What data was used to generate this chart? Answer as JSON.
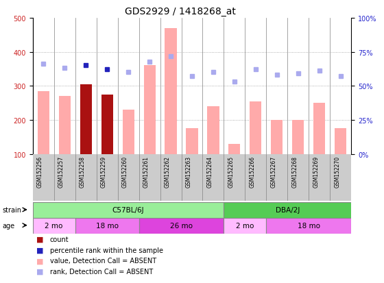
{
  "title": "GDS2929 / 1418268_at",
  "samples": [
    "GSM152256",
    "GSM152257",
    "GSM152258",
    "GSM152259",
    "GSM152260",
    "GSM152261",
    "GSM152262",
    "GSM152263",
    "GSM152264",
    "GSM152265",
    "GSM152266",
    "GSM152267",
    "GSM152268",
    "GSM152269",
    "GSM152270"
  ],
  "bar_values": [
    285,
    270,
    305,
    275,
    230,
    360,
    470,
    175,
    240,
    130,
    255,
    200,
    200,
    250,
    175
  ],
  "bar_colors": [
    "#ffaaaa",
    "#ffaaaa",
    "#aa1111",
    "#aa1111",
    "#ffaaaa",
    "#ffaaaa",
    "#ffaaaa",
    "#ffaaaa",
    "#ffaaaa",
    "#ffaaaa",
    "#ffaaaa",
    "#ffaaaa",
    "#ffaaaa",
    "#ffaaaa",
    "#ffaaaa"
  ],
  "rank_values_pct": [
    66,
    63,
    65,
    62,
    60,
    68,
    72,
    57,
    60,
    53,
    62,
    58,
    59,
    61,
    57
  ],
  "rank_colors": [
    "#aaaaee",
    "#aaaaee",
    "#2222bb",
    "#2222bb",
    "#aaaaee",
    "#aaaaee",
    "#aaaaee",
    "#aaaaee",
    "#aaaaee",
    "#aaaaee",
    "#aaaaee",
    "#aaaaee",
    "#aaaaee",
    "#aaaaee",
    "#aaaaee"
  ],
  "ylim_left": [
    100,
    500
  ],
  "ylim_right": [
    0,
    100
  ],
  "yticks_left": [
    100,
    200,
    300,
    400,
    500
  ],
  "yticks_right": [
    0,
    25,
    50,
    75,
    100
  ],
  "ytick_labels_right": [
    "0%",
    "25%",
    "50%",
    "75%",
    "100%"
  ],
  "grid_dotted_at": [
    200,
    300,
    400
  ],
  "strain_groups": [
    {
      "label": "C57BL/6J",
      "start": 0,
      "end": 9,
      "color": "#99ee99"
    },
    {
      "label": "DBA/2J",
      "start": 9,
      "end": 15,
      "color": "#55cc55"
    }
  ],
  "age_groups": [
    {
      "label": "2 mo",
      "start": 0,
      "end": 2,
      "color": "#ffbbff"
    },
    {
      "label": "18 mo",
      "start": 2,
      "end": 5,
      "color": "#ee77ee"
    },
    {
      "label": "26 mo",
      "start": 5,
      "end": 9,
      "color": "#dd44dd"
    },
    {
      "label": "2 mo",
      "start": 9,
      "end": 11,
      "color": "#ffbbff"
    },
    {
      "label": "18 mo",
      "start": 11,
      "end": 15,
      "color": "#ee77ee"
    }
  ],
  "bar_width": 0.55,
  "grid_color": "#999999",
  "bg_color": "#ffffff",
  "ylabel_left_color": "#cc2222",
  "ylabel_right_color": "#2222cc",
  "title_fontsize": 10,
  "tick_fontsize": 7,
  "label_fontsize": 7
}
